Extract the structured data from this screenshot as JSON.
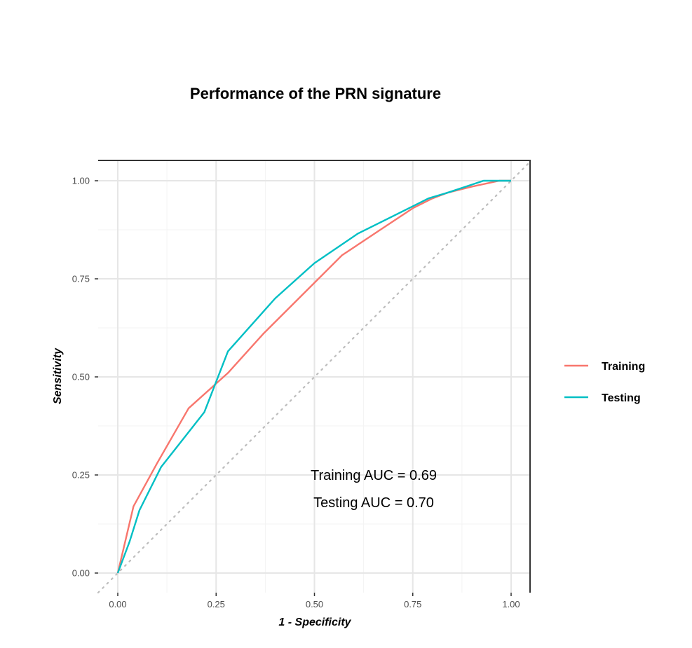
{
  "chart_data": {
    "type": "line",
    "title": "Performance of the PRN signature",
    "xlabel": "1 - Specificity",
    "ylabel": "Sensitivity",
    "xlim": [
      -0.05,
      1.05
    ],
    "ylim": [
      -0.05,
      1.05
    ],
    "xticks": [
      0,
      0.25,
      0.5,
      0.75,
      1
    ],
    "yticks": [
      0,
      0.25,
      0.5,
      0.75,
      1
    ],
    "xtick_labels": [
      "0.00",
      "0.25",
      "0.50",
      "0.75",
      "1.00"
    ],
    "ytick_labels": [
      "0.00",
      "0.25",
      "0.50",
      "0.75",
      "1.00"
    ],
    "grid": true,
    "legend_position": "right",
    "reference_line": {
      "style": "dotted",
      "color": "#bdbdbd",
      "from": [
        -0.05,
        -0.05
      ],
      "to": [
        1.05,
        1.05
      ]
    },
    "series": [
      {
        "name": "Training",
        "color": "#F8766D",
        "x": [
          0,
          0.04,
          0.1,
          0.18,
          0.28,
          0.37,
          0.5,
          0.57,
          0.66,
          0.75,
          0.8,
          0.84,
          0.9,
          0.97,
          1.0
        ],
        "y": [
          0,
          0.17,
          0.28,
          0.42,
          0.51,
          0.61,
          0.74,
          0.81,
          0.87,
          0.93,
          0.955,
          0.97,
          0.985,
          1.0,
          1.0
        ]
      },
      {
        "name": "Testing",
        "color": "#00BFC4",
        "x": [
          0,
          0.03,
          0.055,
          0.11,
          0.22,
          0.28,
          0.4,
          0.5,
          0.61,
          0.7,
          0.75,
          0.79,
          0.84,
          0.93,
          1.0
        ],
        "y": [
          0,
          0.08,
          0.16,
          0.27,
          0.41,
          0.565,
          0.7,
          0.79,
          0.865,
          0.91,
          0.935,
          0.955,
          0.97,
          1.0,
          1.0
        ]
      }
    ],
    "annotations": [
      "Training AUC = 0.69",
      "Testing AUC = 0.70"
    ]
  }
}
